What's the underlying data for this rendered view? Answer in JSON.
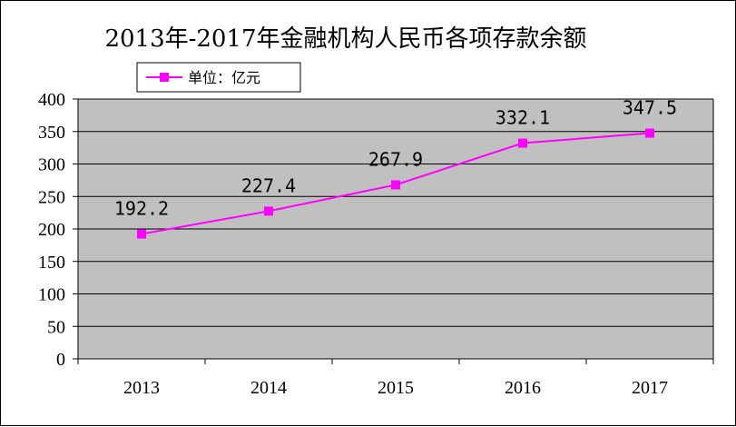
{
  "chart_data": {
    "type": "line",
    "title": "2013年-2017年金融机构人民币各项存款余额",
    "categories": [
      "2013",
      "2014",
      "2015",
      "2016",
      "2017"
    ],
    "series": [
      {
        "name": "单位：亿元",
        "values": [
          192.2,
          227.4,
          267.9,
          332.1,
          347.5
        ]
      }
    ],
    "data_labels": [
      "192.2",
      "227.4",
      "267.9",
      "332.1",
      "347.5"
    ],
    "y_ticks": [
      "0",
      "50",
      "100",
      "150",
      "200",
      "250",
      "300",
      "350",
      "400"
    ],
    "ylim": [
      0,
      400
    ],
    "grid": true,
    "legend_position": "top-left",
    "colors": {
      "series": "#ff00ff",
      "plot_background": "#c0c0c0",
      "gridline": "#000000"
    }
  }
}
